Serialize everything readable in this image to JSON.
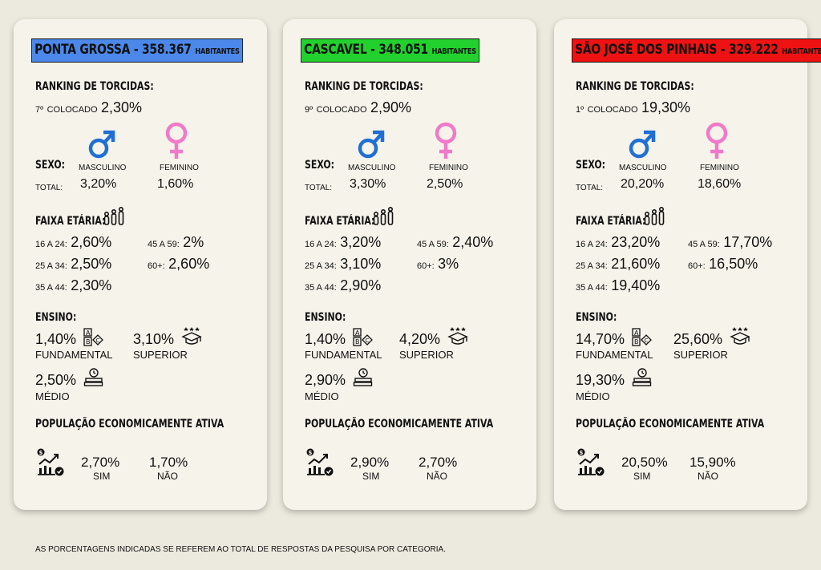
{
  "labels": {
    "ranking": "RANKING DE TORCIDAS:",
    "colocado": "COLOCADO",
    "sexo": "SEXO:",
    "masculino": "MASCULINO",
    "feminino": "FEMININO",
    "total": "TOTAL:",
    "faixa": "FAIXA ETÁRIA:",
    "age_16_24": "16 A 24:",
    "age_25_34": "25 A 34:",
    "age_35_44": "35 A 44:",
    "age_45_59": "45 A 59:",
    "age_60": "60+:",
    "ensino": "ENSINO:",
    "fundamental": "FUNDAMENTAL",
    "superior": "SUPERIOR",
    "medio": "MÉDIO",
    "pea": "POPULAÇÃO ECONOMICAMENTE ATIVA",
    "sim": "SIM",
    "nao": "NÃO",
    "habitantes": "HABITANTES"
  },
  "colors": {
    "male": "#1f6fd6",
    "female": "#f07ac8"
  },
  "footnote": "AS PORCENTAGENS INDICADAS SE REFEREM AO TOTAL DE RESPOSTAS DA PESQUISA POR CATEGORIA.",
  "cities": [
    {
      "name": "PONTA GROSSA - 358.367",
      "color": "#4b88ea",
      "rank_pos": "7º",
      "rank_pct": "2,30%",
      "masc": "3,20%",
      "fem": "1,60%",
      "age_16_24": "2,60%",
      "age_25_34": "2,50%",
      "age_35_44": "2,30%",
      "age_45_59": "2%",
      "age_60": "2,60%",
      "fundamental": "1,40%",
      "superior": "3,10%",
      "medio": "2,50%",
      "sim": "2,70%",
      "nao": "1,70%"
    },
    {
      "name": "CASCAVEL - 348.051",
      "color": "#22d12e",
      "rank_pos": "9º",
      "rank_pct": "2,90%",
      "masc": "3,30%",
      "fem": "2,50%",
      "age_16_24": "3,20%",
      "age_25_34": "3,10%",
      "age_35_44": "2,90%",
      "age_45_59": "2,40%",
      "age_60": "3%",
      "fundamental": "1,40%",
      "superior": "4,20%",
      "medio": "2,90%",
      "sim": "2,90%",
      "nao": "2,70%"
    },
    {
      "name": "SÃO JOSÉ DOS PINHAIS - 329.222",
      "color": "#ef1212",
      "rank_pos": "1º",
      "rank_pct": "19,30%",
      "masc": "20,20%",
      "fem": "18,60%",
      "age_16_24": "23,20%",
      "age_25_34": "21,60%",
      "age_35_44": "19,40%",
      "age_45_59": "17,70%",
      "age_60": "16,50%",
      "fundamental": "14,70%",
      "superior": "25,60%",
      "medio": "19,30%",
      "sim": "20,50%",
      "nao": "15,90%"
    }
  ]
}
